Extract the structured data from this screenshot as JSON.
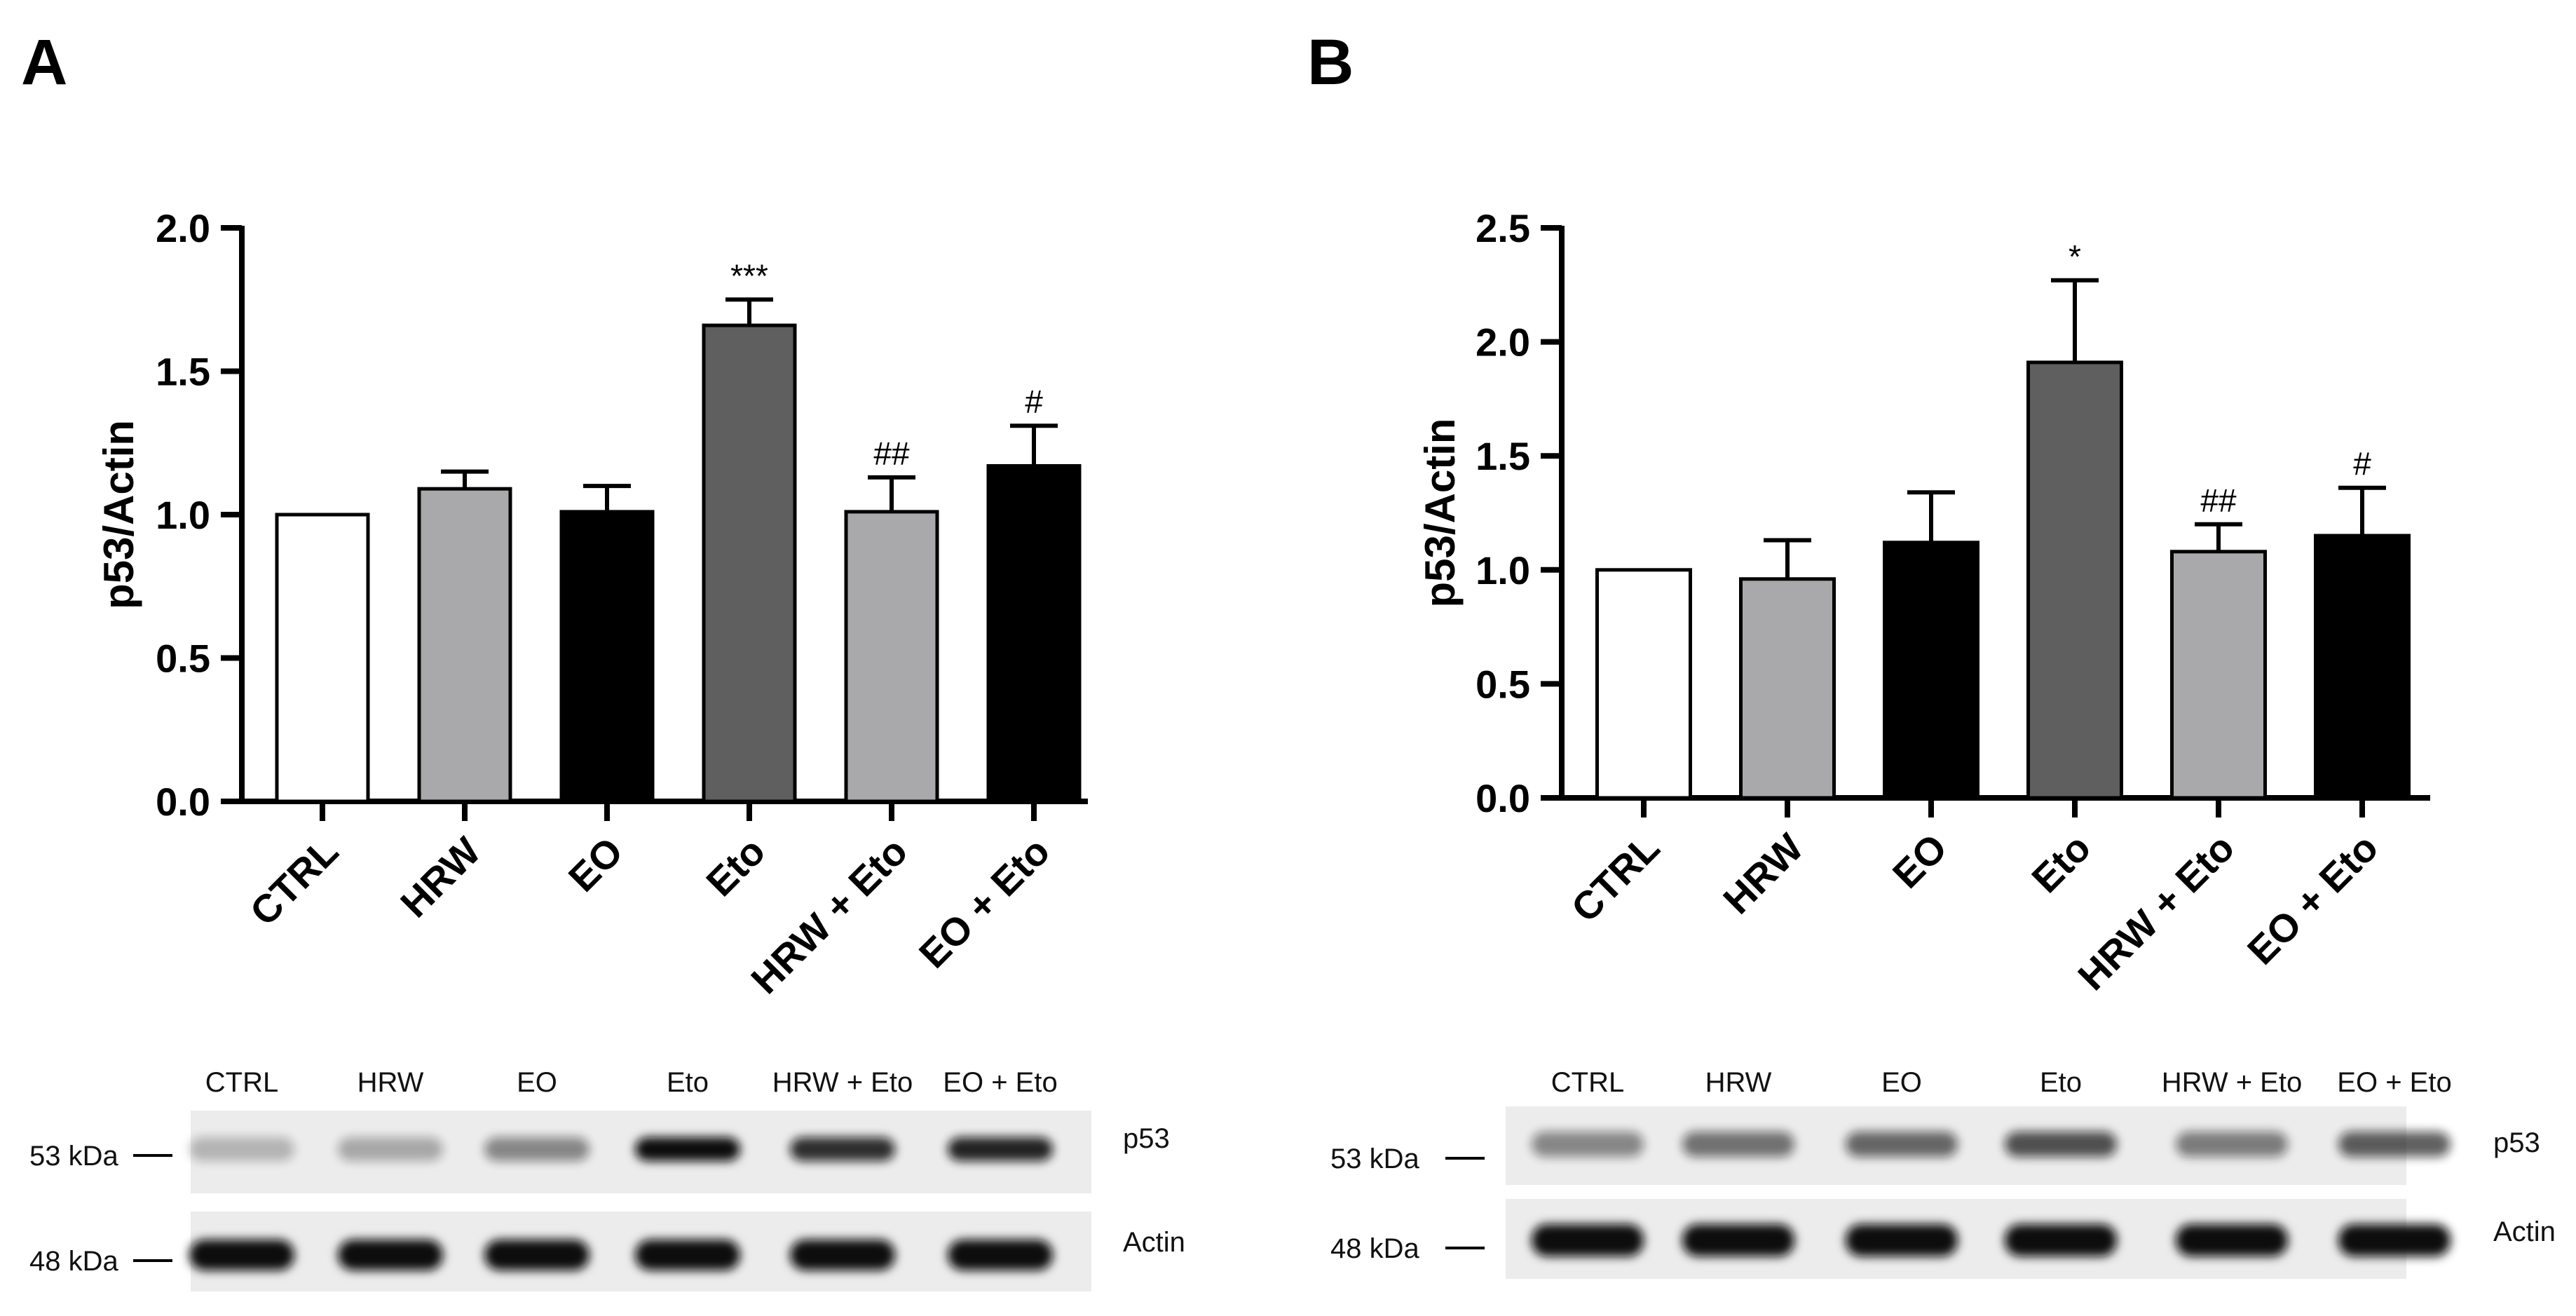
{
  "chart_data": [
    {
      "panel": "A",
      "type": "bar",
      "ylabel": "p53/Actin",
      "ylim": [
        0,
        2.0
      ],
      "yticks": [
        "0.0",
        "0.5",
        "1.0",
        "1.5",
        "2.0"
      ],
      "categories": [
        "CTRL",
        "HRW",
        "EO",
        "Eto",
        "HRW + Eto",
        "EO + Eto"
      ],
      "values": [
        1.0,
        1.09,
        1.01,
        1.66,
        1.01,
        1.17
      ],
      "errors": [
        0,
        0.06,
        0.09,
        0.09,
        0.12,
        0.14
      ],
      "colors": [
        "#ffffff",
        "#a9a9ab",
        "#000000",
        "#5f5f5f",
        "#a9a9ab",
        "#000000"
      ],
      "annotations": [
        "",
        "",
        "",
        "***",
        "##",
        "#"
      ],
      "blot": {
        "lanes": [
          "CTRL",
          "HRW",
          "EO",
          "Eto",
          "HRW + Eto",
          "EO + Eto"
        ],
        "markers": [
          "53 kDa",
          "48 kDa"
        ],
        "rows": [
          "p53",
          "Actin"
        ],
        "p53_intensity": [
          0.25,
          0.3,
          0.45,
          1.0,
          0.85,
          0.9
        ],
        "actin_intensity": [
          1.0,
          1.0,
          1.0,
          1.0,
          1.0,
          1.0
        ]
      }
    },
    {
      "panel": "B",
      "type": "bar",
      "ylabel": "p53/Actin",
      "ylim": [
        0,
        2.5
      ],
      "yticks": [
        "0.0",
        "0.5",
        "1.0",
        "1.5",
        "2.0",
        "2.5"
      ],
      "categories": [
        "CTRL",
        "HRW",
        "EO",
        "Eto",
        "HRW + Eto",
        "EO + Eto"
      ],
      "values": [
        1.0,
        0.96,
        1.12,
        1.91,
        1.08,
        1.15
      ],
      "errors": [
        0,
        0.17,
        0.22,
        0.36,
        0.12,
        0.21
      ],
      "colors": [
        "#ffffff",
        "#a9a9ab",
        "#000000",
        "#5f5f5f",
        "#a9a9ab",
        "#000000"
      ],
      "annotations": [
        "",
        "",
        "",
        "*",
        "##",
        "#"
      ],
      "blot": {
        "lanes": [
          "CTRL",
          "HRW",
          "EO",
          "Eto",
          "HRW + Eto",
          "EO + Eto"
        ],
        "markers": [
          "53 kDa",
          "48 kDa"
        ],
        "rows": [
          "p53",
          "Actin"
        ],
        "p53_intensity": [
          0.45,
          0.55,
          0.6,
          0.7,
          0.5,
          0.65
        ],
        "actin_intensity": [
          1.0,
          1.0,
          1.0,
          1.0,
          1.0,
          1.0
        ]
      }
    }
  ]
}
